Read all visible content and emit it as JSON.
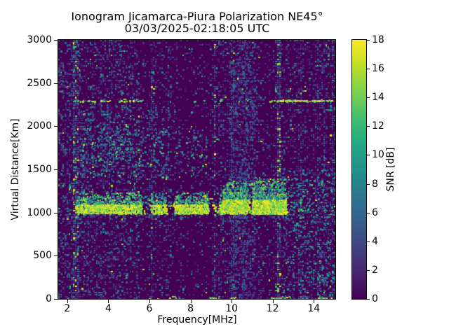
{
  "chart_data": {
    "type": "heatmap",
    "title": "Ionogram Jicamarca-Piura Polarization NE45°",
    "subtitle": "03/03/2025-02:18:05 UTC",
    "xlabel": "Frequency[MHz]",
    "ylabel": "Virtual Distance[Km]",
    "colorbar_label": "SNR [dB]",
    "colormap": "viridis",
    "background_color": "#440154",
    "peak_color": "#fde725",
    "xlim": [
      1.56,
      15.05
    ],
    "ylim": [
      0,
      3000
    ],
    "clim": [
      0,
      18
    ],
    "x_ticks": [
      2,
      4,
      6,
      8,
      10,
      12,
      14
    ],
    "y_ticks": [
      0,
      500,
      1000,
      1500,
      2000,
      2500,
      3000
    ],
    "colorbar_ticks": [
      0,
      2,
      4,
      6,
      8,
      10,
      12,
      14,
      16,
      18
    ],
    "grid": false,
    "legend": "colorbar-right",
    "seed": 42,
    "noise": {
      "cell": 3,
      "base_density": 0.33,
      "max_density": 0.92
    },
    "features": {
      "stripes": [
        {
          "mhz": 2.42,
          "width": 0.13,
          "strength": 2.8,
          "bright": true
        },
        {
          "mhz": 4.15,
          "width": 0.08,
          "strength": 0.7,
          "bright": false
        },
        {
          "mhz": 6.1,
          "width": 0.09,
          "strength": 1.0,
          "bright": false
        },
        {
          "mhz": 9.2,
          "width": 0.06,
          "strength": 1.1,
          "bright": true
        },
        {
          "mhz": 10.05,
          "width": 0.08,
          "strength": 1.2,
          "bright": false
        },
        {
          "mhz": 12.3,
          "width": 0.1,
          "strength": 2.6,
          "bright": true
        },
        {
          "mhz": 13.35,
          "width": 0.08,
          "strength": 0.9,
          "bright": false
        },
        {
          "mhz": 14.55,
          "width": 0.1,
          "strength": 1.0,
          "bright": false
        },
        {
          "mhz": 14.95,
          "width": 0.08,
          "strength": 1.2,
          "bright": false
        }
      ],
      "dark_bands": [
        {
          "f": [
            7.1,
            9.0
          ],
          "mult": 0.55
        },
        {
          "f": [
            11.35,
            12.1
          ],
          "mult": 0.6
        },
        {
          "f": [
            5.5,
            5.95
          ],
          "mult": 0.7
        },
        {
          "f": [
            3.35,
            3.6
          ],
          "mult": 0.75
        }
      ],
      "main_trace": {
        "f_range": [
          2.42,
          12.65
        ],
        "km_base": 1000,
        "km_core": 1110,
        "km_spread": 1260,
        "enhanced_f": [
          9.55,
          12.6
        ],
        "km_core_enhanced": 1160,
        "km_spread_enhanced": 1420,
        "gaps": [
          [
            5.6,
            6.05
          ],
          [
            6.8,
            7.2
          ],
          [
            8.85,
            9.35
          ],
          [
            10.7,
            10.95
          ]
        ],
        "snr_core": [
          11,
          18
        ],
        "snr_spread": [
          5,
          16
        ]
      },
      "second_layer": {
        "f_range": [
          2.3,
          8.8
        ],
        "f_core": [
          2.6,
          6.7
        ],
        "km_range": [
          1420,
          2000
        ],
        "density_core": 0.17,
        "density_edge": 0.08,
        "snr": [
          3,
          17
        ]
      },
      "line_2300": {
        "km": 2300,
        "segments": [
          {
            "f": [
              2.3,
              5.6
            ],
            "density": 0.32,
            "snr": [
              11,
              18
            ]
          },
          {
            "f": [
              5.6,
              11.9
            ],
            "density": 0.07,
            "snr": [
              9,
              16
            ]
          },
          {
            "f": [
              11.95,
              14.85
            ],
            "density": 0.72,
            "snr": [
              13,
              18
            ]
          }
        ]
      },
      "bottom_markers": {
        "km_range": [
          0,
          30
        ],
        "segments": [
          [
            6.95,
            7.55
          ],
          [
            8.9,
            9.25
          ],
          [
            9.95,
            10.25
          ],
          [
            11.9,
            12.85
          ],
          [
            14.15,
            14.95
          ]
        ],
        "density": 0.5,
        "snr": [
          10,
          18
        ]
      },
      "extra_regions": [
        {
          "f": [
            9.9,
            11.15
          ],
          "km": [
            0,
            3000
          ],
          "density": 0.2,
          "snr": [
            2,
            6
          ]
        },
        {
          "f": [
            12.45,
            15.05
          ],
          "km": [
            0,
            1500
          ],
          "density": 0.09,
          "snr": [
            3,
            11
          ]
        },
        {
          "f": [
            12.65,
            15.05
          ],
          "km": [
            950,
            1400
          ],
          "density": 0.08,
          "snr": [
            4,
            14
          ]
        },
        {
          "f": [
            1.56,
            5.5
          ],
          "km": [
            0,
            3000
          ],
          "density": 0.06,
          "snr": [
            2,
            8
          ]
        },
        {
          "f": [
            3.0,
            7.3
          ],
          "km": [
            1950,
            2250
          ],
          "density": 0.045,
          "snr": [
            3,
            10
          ]
        }
      ]
    }
  }
}
